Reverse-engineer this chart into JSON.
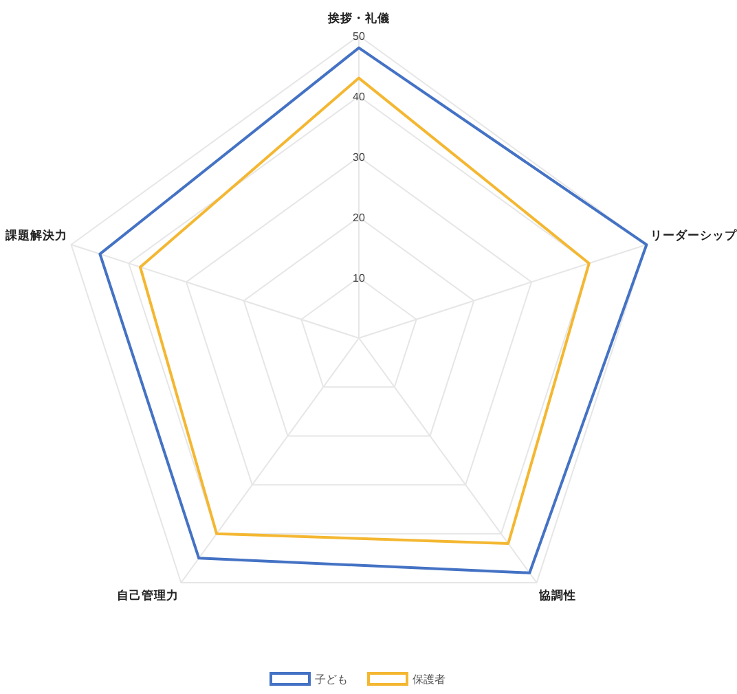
{
  "chart_data": {
    "type": "radar",
    "categories": [
      "挨拶・礼儀",
      "リーダーシップ",
      "協調性",
      "自己管理力",
      "課題解決力"
    ],
    "series": [
      {
        "name": "子ども",
        "color": "#4472c4",
        "values": [
          48,
          50,
          48,
          45,
          45
        ]
      },
      {
        "name": "保護者",
        "color": "#f4b731",
        "values": [
          43,
          40,
          42,
          40,
          38
        ]
      }
    ],
    "ylim": [
      0,
      50
    ],
    "yticks": [
      10,
      20,
      30,
      40,
      50
    ],
    "grid": true,
    "legend": "bottom",
    "marker": "none"
  }
}
